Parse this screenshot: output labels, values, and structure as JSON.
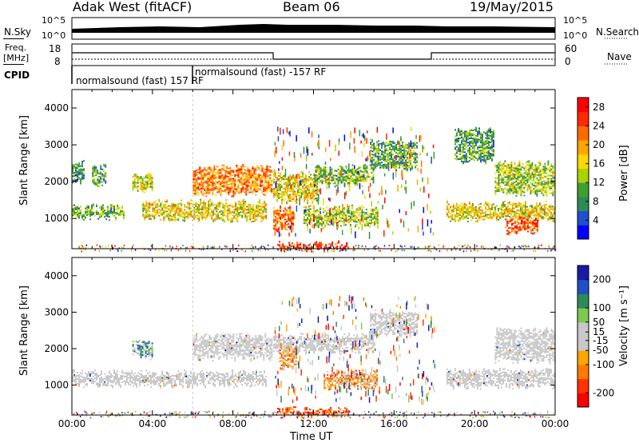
{
  "header": {
    "station": "Adak West (fitACF)",
    "beam": "Beam 06",
    "date": "19/May/2015"
  },
  "top_panel": {
    "left_label": "N.Sky",
    "right_label": "N.Search",
    "left_ticks": [
      "10^5",
      "10^0"
    ],
    "right_ticks": [
      "10^5",
      "10^0"
    ]
  },
  "freq_panel": {
    "left_label_1": "Freq.",
    "left_label_2": "[MHz]",
    "right_label": "Nave",
    "left_ticks": [
      "18",
      "8"
    ],
    "right_ticks": [
      "60",
      "0"
    ]
  },
  "cpid_panel": {
    "label": "CPID",
    "entries": [
      "normalsound (fast) 157 RF",
      "normalsound (fast) -157 RF"
    ]
  },
  "colors": {
    "power_scale": [
      "#0000ff",
      "#1f4fd0",
      "#2e8b57",
      "#3ea02e",
      "#a8d400",
      "#ffd700",
      "#ffa500",
      "#ff6a00",
      "#ff2a00",
      "#ff0000"
    ],
    "velocity_scale": [
      "#1a1aa8",
      "#2050c8",
      "#2e8b57",
      "#7ec850",
      "#c8c8c8",
      "#c8c8c8",
      "#ffa500",
      "#ff7a00",
      "#ff3300",
      "#ff0000"
    ],
    "gray": "#c8c8c8"
  },
  "chart_data": [
    {
      "type": "heatmap",
      "name": "power",
      "ylabel": "Slant Range [km]",
      "ylim": [
        180,
        4500
      ],
      "yticks": [
        1000,
        2000,
        3000,
        4000
      ],
      "colorbar_label": "Power [dB]",
      "colorbar_ticks": [
        4,
        8,
        12,
        16,
        20,
        24,
        28
      ],
      "colorbar_range": [
        0,
        30
      ],
      "bands": [
        {
          "start_hr": 0.0,
          "end_hr": 0.6,
          "r_lo": 2000,
          "r_hi": 2500,
          "level": 0.25
        },
        {
          "start_hr": 0.0,
          "end_hr": 2.6,
          "r_lo": 1050,
          "r_hi": 1320,
          "level": 0.35
        },
        {
          "start_hr": 1.0,
          "end_hr": 1.7,
          "r_lo": 1900,
          "r_hi": 2400,
          "level": 0.3
        },
        {
          "start_hr": 3.0,
          "end_hr": 4.0,
          "r_lo": 1800,
          "r_hi": 2200,
          "level": 0.5
        },
        {
          "start_hr": 3.5,
          "end_hr": 9.7,
          "r_lo": 1000,
          "r_hi": 1450,
          "level": 0.55
        },
        {
          "start_hr": 6.0,
          "end_hr": 10.0,
          "r_lo": 1700,
          "r_hi": 2400,
          "level": 0.75
        },
        {
          "start_hr": 10.0,
          "end_hr": 12.2,
          "r_lo": 1500,
          "r_hi": 2200,
          "level": 0.55
        },
        {
          "start_hr": 10.0,
          "end_hr": 11.0,
          "r_lo": 700,
          "r_hi": 1300,
          "level": 0.8
        },
        {
          "start_hr": 12.0,
          "end_hr": 15.0,
          "r_lo": 1950,
          "r_hi": 2400,
          "level": 0.35
        },
        {
          "start_hr": 11.5,
          "end_hr": 15.2,
          "r_lo": 850,
          "r_hi": 1300,
          "level": 0.45
        },
        {
          "start_hr": 14.8,
          "end_hr": 17.2,
          "r_lo": 2400,
          "r_hi": 3100,
          "level": 0.3
        },
        {
          "start_hr": 18.6,
          "end_hr": 24.0,
          "r_lo": 1000,
          "r_hi": 1400,
          "level": 0.55
        },
        {
          "start_hr": 19.0,
          "end_hr": 21.0,
          "r_lo": 2550,
          "r_hi": 3400,
          "level": 0.3
        },
        {
          "start_hr": 21.0,
          "end_hr": 24.0,
          "r_lo": 1700,
          "r_hi": 2500,
          "level": 0.45
        },
        {
          "start_hr": 21.5,
          "end_hr": 23.2,
          "r_lo": 650,
          "r_hi": 1000,
          "level": 0.85
        },
        {
          "start_hr": 10.2,
          "end_hr": 13.8,
          "r_lo": 180,
          "r_hi": 330,
          "level": 0.9
        }
      ]
    },
    {
      "type": "heatmap",
      "name": "velocity",
      "ylabel": "Slant Range [km]",
      "ylim": [
        180,
        4500
      ],
      "yticks": [
        1000,
        2000,
        3000,
        4000
      ],
      "xlabel": "Time UT",
      "xticks": [
        "00:00",
        "04:00",
        "08:00",
        "12:00",
        "16:00",
        "20:00",
        "00:00"
      ],
      "colorbar_label": "Velocity [m s⁻¹]",
      "colorbar_ticks": [
        200,
        100,
        50,
        15,
        -15,
        -50,
        -100,
        -200
      ],
      "colorbar_range": [
        -250,
        250
      ],
      "bands": [
        {
          "start_hr": 0.0,
          "end_hr": 9.7,
          "r_lo": 1000,
          "r_hi": 1350,
          "level": 0.5
        },
        {
          "start_hr": 3.0,
          "end_hr": 4.0,
          "r_lo": 1800,
          "r_hi": 2200,
          "level": 0.3
        },
        {
          "start_hr": 6.0,
          "end_hr": 10.0,
          "r_lo": 1750,
          "r_hi": 2350,
          "level": 0.5
        },
        {
          "start_hr": 10.0,
          "end_hr": 15.0,
          "r_lo": 1950,
          "r_hi": 2350,
          "level": 0.5
        },
        {
          "start_hr": 14.8,
          "end_hr": 17.2,
          "r_lo": 2400,
          "r_hi": 3000,
          "level": 0.5
        },
        {
          "start_hr": 12.5,
          "end_hr": 15.2,
          "r_lo": 950,
          "r_hi": 1350,
          "level": 0.7
        },
        {
          "start_hr": 10.3,
          "end_hr": 11.2,
          "r_lo": 1500,
          "r_hi": 2000,
          "level": 0.72
        },
        {
          "start_hr": 18.6,
          "end_hr": 24.0,
          "r_lo": 1000,
          "r_hi": 1400,
          "level": 0.5
        },
        {
          "start_hr": 21.0,
          "end_hr": 24.0,
          "r_lo": 1700,
          "r_hi": 2500,
          "level": 0.5
        },
        {
          "start_hr": 10.2,
          "end_hr": 13.8,
          "r_lo": 180,
          "r_hi": 330,
          "level": 0.85
        }
      ]
    }
  ]
}
